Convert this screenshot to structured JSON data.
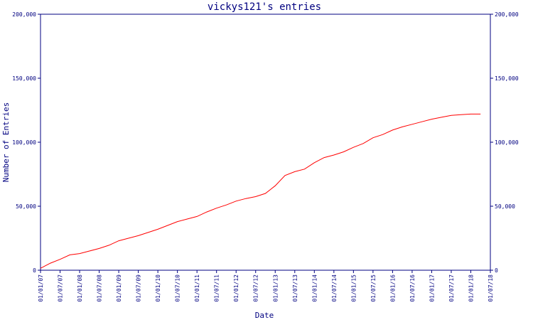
{
  "chart_data": {
    "type": "line",
    "title": "vickys121's entries",
    "xlabel": "Date",
    "ylabel": "Number of Entries",
    "ylim": [
      0,
      200000
    ],
    "yticks": [
      0,
      50000,
      100000,
      150000,
      200000
    ],
    "ytick_labels": [
      "0",
      "50,000",
      "100,000",
      "150,000",
      "200,000"
    ],
    "right_axis": true,
    "grid": false,
    "xticks": [
      "01/01/07",
      "01/07/07",
      "01/01/08",
      "01/07/08",
      "01/01/09",
      "01/07/09",
      "01/01/10",
      "01/07/10",
      "01/01/11",
      "01/07/11",
      "01/01/12",
      "01/07/12",
      "01/01/13",
      "01/07/13",
      "01/01/14",
      "01/07/14",
      "01/01/15",
      "01/07/15",
      "01/01/16",
      "01/07/16",
      "01/01/17",
      "01/07/17",
      "01/01/18",
      "01/07/18"
    ],
    "series": [
      {
        "color": "#ff0000",
        "x": [
          "2007-01",
          "2007-04",
          "2007-07",
          "2007-10",
          "2008-01",
          "2008-04",
          "2008-07",
          "2008-10",
          "2009-01",
          "2009-04",
          "2009-07",
          "2009-10",
          "2010-01",
          "2010-04",
          "2010-07",
          "2010-10",
          "2011-01",
          "2011-04",
          "2011-07",
          "2011-10",
          "2012-01",
          "2012-04",
          "2012-07",
          "2012-10",
          "2013-01",
          "2013-04",
          "2013-07",
          "2013-10",
          "2014-01",
          "2014-04",
          "2014-07",
          "2014-10",
          "2015-01",
          "2015-04",
          "2015-07",
          "2015-10",
          "2016-01",
          "2016-04",
          "2016-07",
          "2016-10",
          "2017-01",
          "2017-04",
          "2017-07",
          "2017-10",
          "2018-01",
          "2018-04"
        ],
        "values": [
          1500,
          5500,
          8500,
          12000,
          13000,
          15000,
          17000,
          19500,
          23000,
          25000,
          27000,
          29500,
          32000,
          35000,
          38000,
          40000,
          42000,
          45500,
          48500,
          51000,
          54000,
          56000,
          57500,
          60000,
          66000,
          74000,
          77000,
          79000,
          84000,
          88000,
          90000,
          92500,
          96000,
          99000,
          103500,
          106000,
          109500,
          112000,
          114000,
          116000,
          118000,
          119500,
          121000,
          121500,
          122000,
          122000
        ]
      }
    ]
  }
}
